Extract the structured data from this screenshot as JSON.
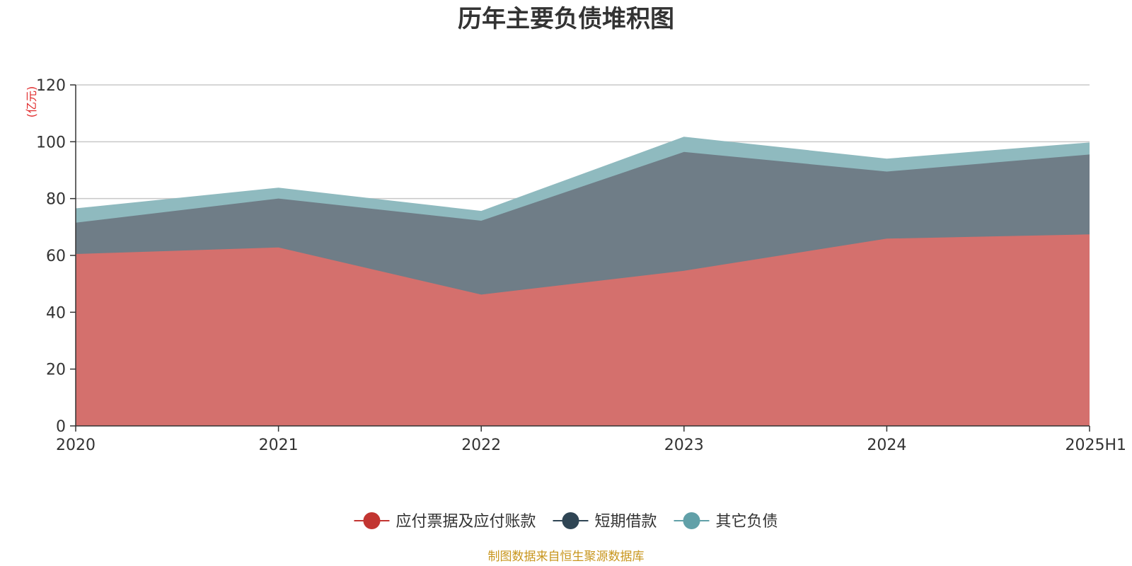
{
  "chart_data": {
    "type": "area",
    "stacked": true,
    "title": "历年主要负债堆积图",
    "unit_label": "(亿元)",
    "categories": [
      "2020",
      "2021",
      "2022",
      "2023",
      "2024",
      "2025H1"
    ],
    "ylim": [
      0,
      120
    ],
    "yticks": [
      0,
      20,
      40,
      60,
      80,
      100,
      120
    ],
    "grid": true,
    "legend_position": "bottom",
    "series": [
      {
        "name": "应付票据及应付账款",
        "values": [
          60.5,
          62.8,
          46.2,
          54.6,
          65.9,
          67.4
        ]
      },
      {
        "name": "短期借款",
        "values": [
          11.0,
          17.2,
          26.0,
          41.8,
          23.6,
          28.1
        ]
      },
      {
        "name": "其它负债",
        "values": [
          4.8,
          3.6,
          3.2,
          5.1,
          4.3,
          4.0
        ]
      }
    ],
    "source": "制图数据来自恒生聚源数据库"
  },
  "colors": {
    "series_lines": [
      "#c23531",
      "#2f4554",
      "#61a0a8"
    ],
    "series_fills": [
      "#d4706d",
      "#6f7d87",
      "#8fbabf"
    ],
    "grid": "#c8c8c8",
    "axis": "#333333"
  }
}
